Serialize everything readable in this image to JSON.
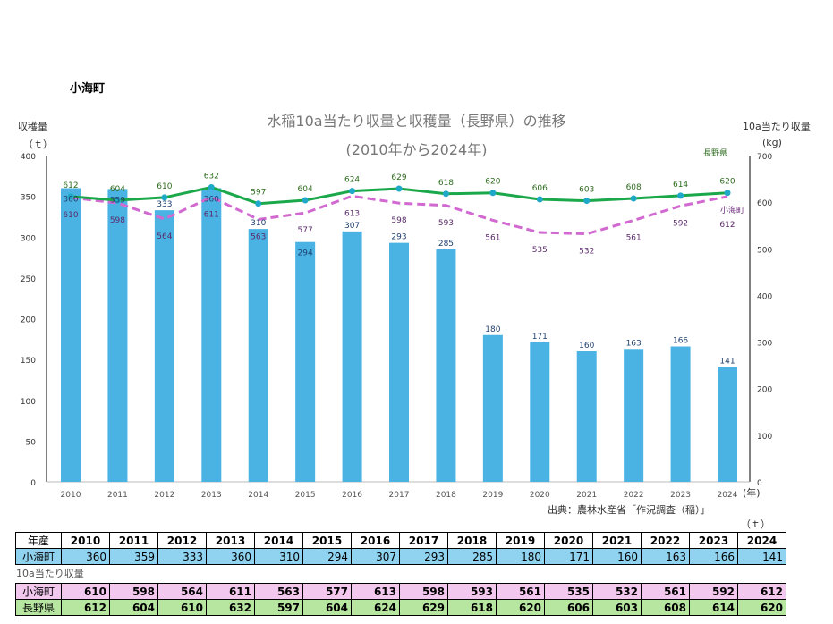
{
  "town_title": "小海町",
  "chart_data": {
    "type": "bar+line",
    "title": "水稲10a当たり収量と収穫量（長野県）の推移",
    "subtitle": "(2010年から2024年)",
    "ylabel_left": "収穫量",
    "yunit_left": "（ｔ）",
    "ylabel_right": "10a当たり収量",
    "yunit_right": "(kg)",
    "xunit": "(年)",
    "ylim_left": [
      0,
      400
    ],
    "yticks_left": [
      0,
      50,
      100,
      150,
      200,
      250,
      300,
      350,
      400
    ],
    "ylim_right": [
      0,
      700
    ],
    "yticks_right": [
      0,
      100,
      200,
      300,
      400,
      500,
      600,
      700
    ],
    "categories": [
      "2010",
      "2011",
      "2012",
      "2013",
      "2014",
      "2015",
      "2016",
      "2017",
      "2018",
      "2019",
      "2020",
      "2021",
      "2022",
      "2023",
      "2024"
    ],
    "series": [
      {
        "name": "小海町",
        "kind": "bar",
        "axis": "left",
        "color": "#4ab3e3",
        "values": [
          360,
          359,
          333,
          360,
          310,
          294,
          307,
          293,
          285,
          180,
          171,
          160,
          163,
          166,
          141
        ]
      },
      {
        "name": "長野県",
        "kind": "line",
        "axis": "right",
        "color": "#1aa84a",
        "values": [
          612,
          604,
          610,
          632,
          597,
          604,
          624,
          629,
          618,
          620,
          606,
          603,
          608,
          614,
          620
        ]
      },
      {
        "name": "小海町",
        "kind": "dashed-line",
        "axis": "right",
        "color": "#d169d1",
        "values": [
          610,
          598,
          564,
          611,
          563,
          577,
          613,
          598,
          593,
          561,
          535,
          532,
          561,
          592,
          612
        ]
      }
    ],
    "source": "出典：農林水産省「作況調査（稲）」",
    "grid": false
  },
  "table": {
    "unit": "（ｔ）",
    "header_label": "年産",
    "harvest_row_label": "小海町",
    "yield_caption": "10a当たり収量",
    "yield_rows": [
      "小海町",
      "長野県"
    ]
  }
}
